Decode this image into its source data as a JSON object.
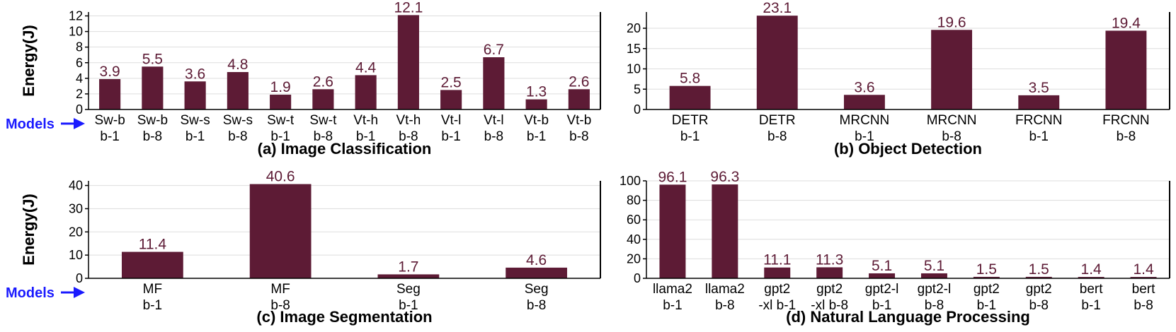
{
  "figure": {
    "bar_color": "#5d1b35",
    "models_color": "#1a1aff",
    "models_label": "Models"
  },
  "chart_data": [
    {
      "type": "bar",
      "title": "(a) Image Classification",
      "ylabel": "Energy(J)",
      "ylim": [
        0,
        12.5
      ],
      "yticks": [
        0,
        2,
        4,
        6,
        8,
        10,
        12
      ],
      "grid": true,
      "categories": [
        [
          "Sw-b",
          "b-1"
        ],
        [
          "Sw-b",
          "b-8"
        ],
        [
          "Sw-s",
          "b-1"
        ],
        [
          "Sw-s",
          "b-8"
        ],
        [
          "Sw-t",
          "b-1"
        ],
        [
          "Sw-t",
          "b-8"
        ],
        [
          "Vt-h",
          "b-1"
        ],
        [
          "Vt-h",
          "b-8"
        ],
        [
          "Vt-l",
          "b-1"
        ],
        [
          "Vt-l",
          "b-8"
        ],
        [
          "Vt-b",
          "b-1"
        ],
        [
          "Vt-b",
          "b-8"
        ]
      ],
      "values": [
        3.9,
        5.5,
        3.6,
        4.8,
        1.9,
        2.6,
        4.4,
        12.1,
        2.5,
        6.7,
        1.3,
        2.6
      ],
      "labels": [
        "3.9",
        "5.5",
        "3.6",
        "4.8",
        "1.9",
        "2.6",
        "4.4",
        "12.1",
        "2.5",
        "6.7",
        "1.3",
        "2.6"
      ],
      "show_models_label": true
    },
    {
      "type": "bar",
      "title": "(b) Object Detection",
      "ylabel": "Energy(J)",
      "ylim": [
        0,
        24
      ],
      "yticks": [
        0,
        5,
        10,
        15,
        20
      ],
      "grid": true,
      "categories": [
        [
          "DETR",
          "b-1"
        ],
        [
          "DETR",
          "b-8"
        ],
        [
          "MRCNN",
          "b-1"
        ],
        [
          "MRCNN",
          "b-8"
        ],
        [
          "FRCNN",
          "b-1"
        ],
        [
          "FRCNN",
          "b-8"
        ]
      ],
      "values": [
        5.8,
        23.1,
        3.6,
        19.6,
        3.5,
        19.4
      ],
      "labels": [
        "5.8",
        "23.1",
        "3.6",
        "19.6",
        "3.5",
        "19.4"
      ],
      "show_models_label": false
    },
    {
      "type": "bar",
      "title": "(c) Image Segmentation",
      "ylabel": "Energy(J)",
      "ylim": [
        0,
        42
      ],
      "yticks": [
        0,
        10,
        20,
        30,
        40
      ],
      "grid": true,
      "categories": [
        [
          "MF",
          "b-1"
        ],
        [
          "MF",
          "b-8"
        ],
        [
          "Seg",
          "b-1"
        ],
        [
          "Seg",
          "b-8"
        ]
      ],
      "values": [
        11.4,
        40.6,
        1.7,
        4.6
      ],
      "labels": [
        "11.4",
        "40.6",
        "1.7",
        "4.6"
      ],
      "show_models_label": true
    },
    {
      "type": "bar",
      "title": "(d) Natural Language Processing",
      "ylabel": "Energy(J)",
      "ylim": [
        0,
        100
      ],
      "yticks": [
        0,
        20,
        40,
        60,
        80,
        100
      ],
      "grid": true,
      "categories": [
        [
          "llama2",
          "b-1"
        ],
        [
          "llama2",
          "b-8"
        ],
        [
          "gpt2",
          "-xl b-1"
        ],
        [
          "gpt2",
          "-xl b-8"
        ],
        [
          "gpt2-l",
          "b-1"
        ],
        [
          "gpt2-l",
          "b-8"
        ],
        [
          "gpt2",
          "b-1"
        ],
        [
          "gpt2",
          "b-8"
        ],
        [
          "bert",
          "b-1"
        ],
        [
          "bert",
          "b-8"
        ]
      ],
      "values": [
        96.1,
        96.3,
        11.1,
        11.3,
        5.1,
        5.1,
        1.5,
        1.5,
        1.4,
        1.4
      ],
      "labels": [
        "96.1",
        "96.3",
        "11.1",
        "11.3",
        "5.1",
        "5.1",
        "1.5",
        "1.5",
        "1.4",
        "1.4"
      ],
      "show_models_label": false
    }
  ]
}
